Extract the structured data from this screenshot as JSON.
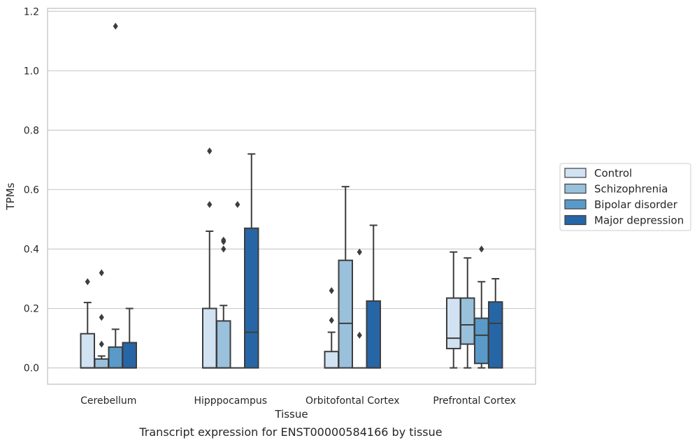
{
  "chart_data": {
    "type": "boxplot",
    "xlabel": "Tissue",
    "ylabel": "TPMs",
    "caption": "Transcript expression for ENST00000584166 by tissue",
    "ylim": [
      -0.055,
      1.21
    ],
    "yticks": [
      0.0,
      0.2,
      0.4,
      0.6,
      0.8,
      1.0,
      1.2
    ],
    "ytick_labels": [
      "0.0",
      "0.2",
      "0.4",
      "0.6",
      "0.8",
      "1.0",
      "1.2"
    ],
    "grid": "horizontal",
    "legend_position": "right",
    "categories": [
      "Cerebellum",
      "Hipppocampus",
      "Orbitofontal Cortex",
      "Prefrontal Cortex"
    ],
    "series": [
      {
        "name": "Control",
        "color": "#d1e2f2",
        "boxes": [
          {
            "q1": 0.0,
            "median": 0.0,
            "q3": 0.115,
            "whislo": 0.0,
            "whishi": 0.22,
            "fliers": [
              0.29
            ]
          },
          {
            "q1": 0.0,
            "median": 0.0,
            "q3": 0.2,
            "whislo": 0.0,
            "whishi": 0.46,
            "fliers": [
              0.55,
              0.73
            ]
          },
          {
            "q1": 0.0,
            "median": 0.0,
            "q3": 0.055,
            "whislo": 0.0,
            "whishi": 0.12,
            "fliers": [
              0.16,
              0.26
            ]
          },
          {
            "q1": 0.065,
            "median": 0.1,
            "q3": 0.235,
            "whislo": 0.0,
            "whishi": 0.39,
            "fliers": []
          }
        ]
      },
      {
        "name": "Schizophrenia",
        "color": "#9ac1dc",
        "boxes": [
          {
            "q1": 0.0,
            "median": 0.0,
            "q3": 0.03,
            "whislo": 0.0,
            "whishi": 0.04,
            "fliers": [
              0.08,
              0.17,
              0.32
            ]
          },
          {
            "q1": 0.0,
            "median": 0.0,
            "q3": 0.158,
            "whislo": 0.0,
            "whishi": 0.21,
            "fliers": [
              0.4,
              0.425,
              0.43
            ]
          },
          {
            "q1": 0.0,
            "median": 0.15,
            "q3": 0.362,
            "whislo": 0.0,
            "whishi": 0.61,
            "fliers": []
          },
          {
            "q1": 0.08,
            "median": 0.145,
            "q3": 0.235,
            "whislo": 0.0,
            "whishi": 0.37,
            "fliers": []
          }
        ]
      },
      {
        "name": "Bipolar disorder",
        "color": "#5a9ac9",
        "boxes": [
          {
            "q1": 0.0,
            "median": 0.0,
            "q3": 0.07,
            "whislo": 0.0,
            "whishi": 0.13,
            "fliers": []
          },
          {
            "q1": 0.0,
            "median": 0.0,
            "q3": 0.0,
            "whislo": 0.0,
            "whishi": 0.0,
            "fliers": [
              0.55
            ]
          },
          {
            "q1": 0.0,
            "median": 0.0,
            "q3": 0.0,
            "whislo": 0.0,
            "whishi": 0.0,
            "fliers": [
              0.11,
              0.39
            ]
          },
          {
            "q1": 0.015,
            "median": 0.11,
            "q3": 0.167,
            "whislo": 0.0,
            "whishi": 0.29,
            "fliers": [
              0.4
            ]
          }
        ]
      },
      {
        "name": "Major depression",
        "color": "#2766a6",
        "boxes": [
          {
            "q1": 0.0,
            "median": 0.0,
            "q3": 0.085,
            "whislo": 0.0,
            "whishi": 0.2,
            "fliers": []
          },
          {
            "q1": 0.0,
            "median": 0.12,
            "q3": 0.47,
            "whislo": 0.0,
            "whishi": 0.72,
            "fliers": []
          },
          {
            "q1": 0.0,
            "median": 0.0,
            "q3": 0.225,
            "whislo": 0.0,
            "whishi": 0.48,
            "fliers": []
          },
          {
            "q1": 0.0,
            "median": 0.15,
            "q3": 0.222,
            "whislo": 0.0,
            "whishi": 0.3,
            "fliers": []
          }
        ],
        "extra_fliers": [
          1.15
        ]
      }
    ],
    "extra_flier_series": "Schizophrenia",
    "extra_flier_category": "Cerebellum"
  }
}
